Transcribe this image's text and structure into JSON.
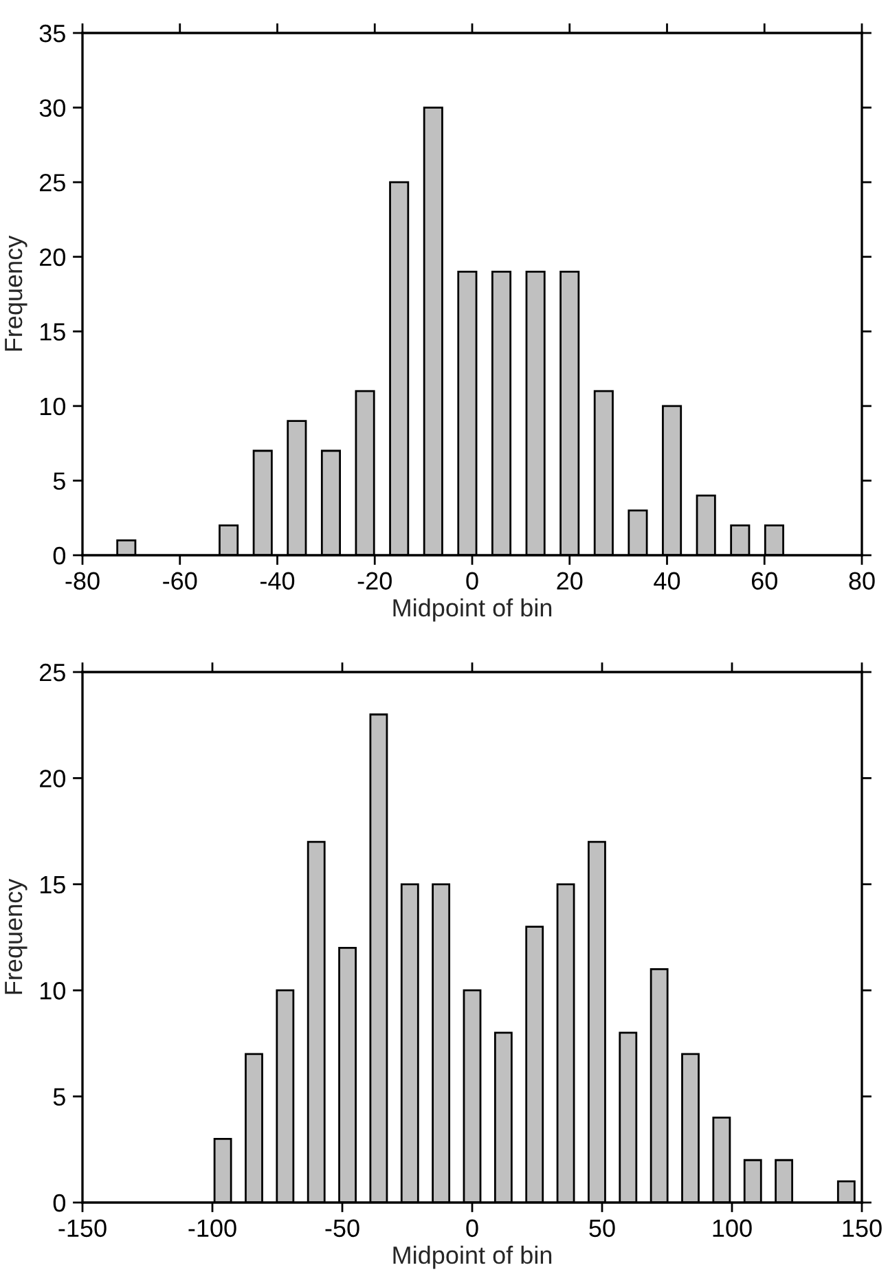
{
  "chart_data": [
    {
      "type": "bar",
      "xlabel": "Midpoint of bin",
      "ylabel": "Frequency",
      "color": "#c0c0c0",
      "x": [
        -71,
        -50,
        -43,
        -36,
        -29,
        -22,
        -15,
        -8,
        -1,
        6,
        13,
        20,
        27,
        34,
        41,
        48,
        55,
        62
      ],
      "values": [
        1,
        2,
        7,
        9,
        7,
        11,
        25,
        30,
        19,
        19,
        19,
        19,
        11,
        3,
        10,
        4,
        2,
        2
      ],
      "xlim": [
        -80,
        80
      ],
      "xticks": [
        -80,
        -60,
        -40,
        -20,
        0,
        20,
        40,
        60,
        80
      ],
      "ylim": [
        0,
        35
      ],
      "yticks": [
        0,
        5,
        10,
        15,
        20,
        25,
        30,
        35
      ],
      "grid": false
    },
    {
      "type": "bar",
      "xlabel": "Midpoint of bin",
      "ylabel": "Frequency",
      "color": "#c0c0c0",
      "x": [
        -96,
        -84,
        -72,
        -60,
        -48,
        -36,
        -24,
        -12,
        0,
        12,
        24,
        36,
        48,
        60,
        72,
        84,
        96,
        108,
        120,
        144
      ],
      "values": [
        3,
        7,
        10,
        17,
        12,
        23,
        15,
        15,
        10,
        8,
        13,
        15,
        17,
        8,
        11,
        7,
        4,
        2,
        2,
        1
      ],
      "xlim": [
        -150,
        150
      ],
      "xticks": [
        -150,
        -100,
        -50,
        0,
        50,
        100,
        150
      ],
      "ylim": [
        0,
        25
      ],
      "yticks": [
        0,
        5,
        10,
        15,
        20,
        25
      ],
      "grid": false
    }
  ]
}
